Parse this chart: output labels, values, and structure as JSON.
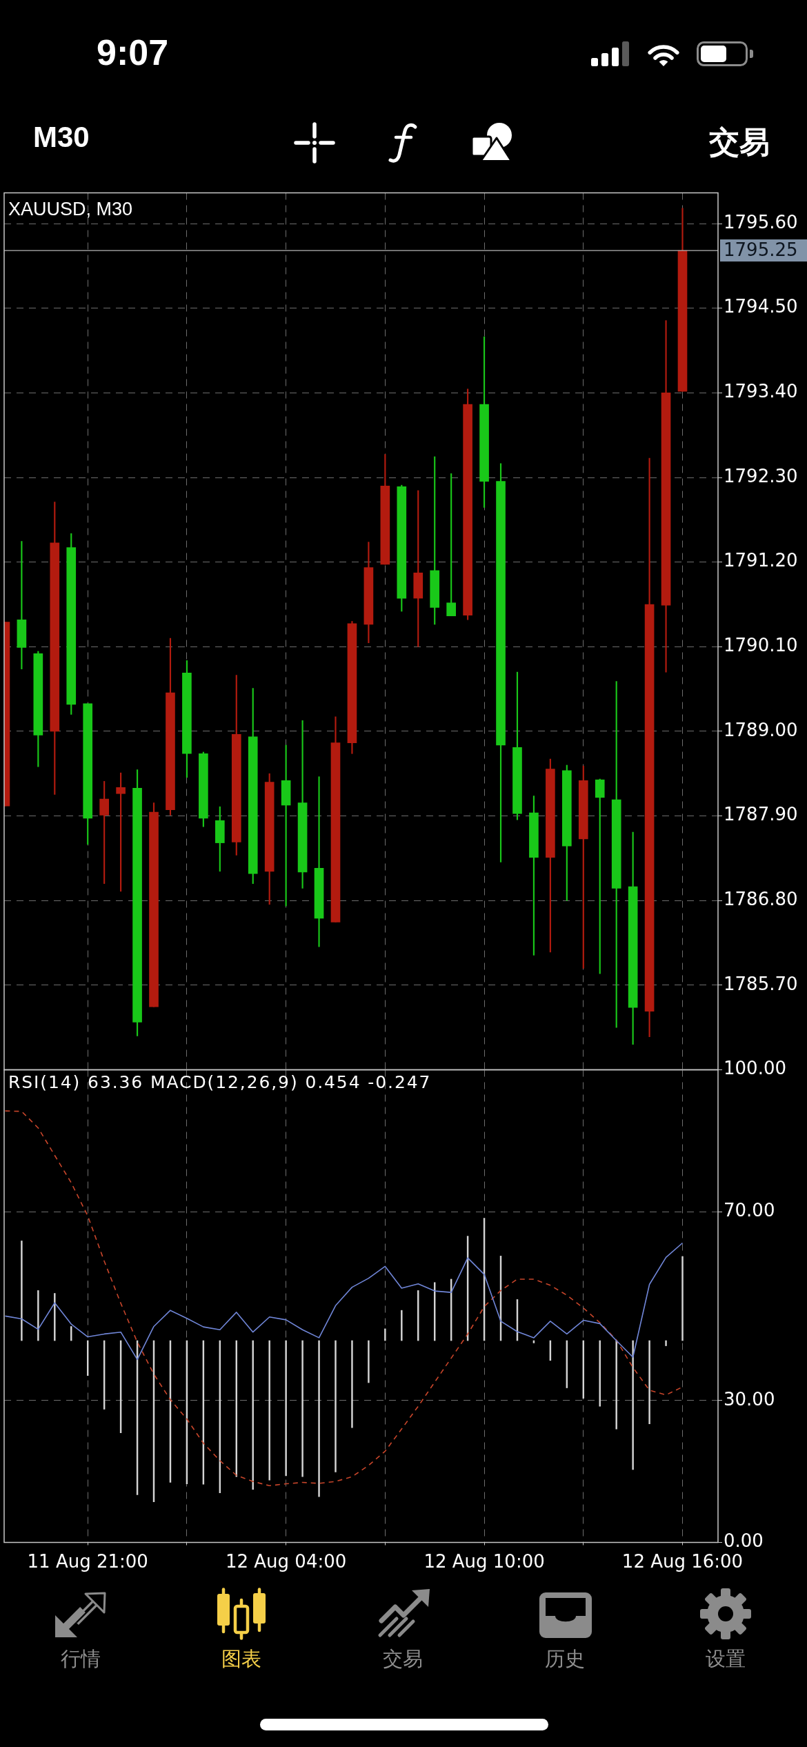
{
  "chart_data": [
    {
      "type": "candlestick",
      "title": "XAUUSD, M30",
      "categories": [
        null,
        null,
        null,
        null,
        null,
        null,
        null,
        null,
        null,
        null,
        null,
        null,
        null,
        null,
        null,
        null,
        null,
        null,
        null,
        null,
        null,
        null,
        null,
        null,
        null,
        null,
        null,
        null,
        null,
        null,
        null,
        null,
        null,
        null,
        null,
        null,
        null,
        null,
        null,
        null,
        null,
        null
      ],
      "ohlc": [
        [
          1788.03,
          1790.42,
          1788.03,
          1790.42
        ],
        [
          1790.45,
          1791.47,
          1789.81,
          1790.09
        ],
        [
          1790.01,
          1790.04,
          1788.54,
          1788.95
        ],
        [
          1789.0,
          1791.98,
          1788.18,
          1791.45
        ],
        [
          1791.39,
          1791.57,
          1789.22,
          1789.35
        ],
        [
          1789.36,
          1789.36,
          1787.53,
          1787.87
        ],
        [
          1787.91,
          1788.35,
          1787.02,
          1788.12
        ],
        [
          1788.19,
          1788.46,
          1786.92,
          1788.27
        ],
        [
          1788.26,
          1788.5,
          1785.04,
          1785.22
        ],
        [
          1785.42,
          1788.07,
          1785.42,
          1787.95
        ],
        [
          1787.98,
          1790.21,
          1787.91,
          1789.5
        ],
        [
          1789.76,
          1789.92,
          1788.4,
          1788.71
        ],
        [
          1788.71,
          1788.73,
          1787.76,
          1787.87
        ],
        [
          1787.84,
          1788.02,
          1787.18,
          1787.55
        ],
        [
          1787.56,
          1789.73,
          1787.39,
          1788.96
        ],
        [
          1788.93,
          1789.56,
          1787.02,
          1787.15
        ],
        [
          1787.18,
          1788.45,
          1786.75,
          1788.34
        ],
        [
          1788.36,
          1788.82,
          1786.73,
          1788.04
        ],
        [
          1788.07,
          1789.14,
          1786.96,
          1787.17
        ],
        [
          1787.22,
          1788.41,
          1786.2,
          1786.57
        ],
        [
          1786.52,
          1789.19,
          1786.52,
          1788.85
        ],
        [
          1788.85,
          1790.43,
          1788.71,
          1790.4
        ],
        [
          1790.39,
          1791.46,
          1790.15,
          1791.13
        ],
        [
          1791.17,
          1792.6,
          1791.17,
          1792.19
        ],
        [
          1792.18,
          1792.2,
          1790.56,
          1790.73
        ],
        [
          1790.73,
          1792.13,
          1790.1,
          1791.06
        ],
        [
          1791.09,
          1792.57,
          1790.39,
          1790.61
        ],
        [
          1790.67,
          1792.35,
          1790.5,
          1790.5
        ],
        [
          1790.51,
          1793.45,
          1790.45,
          1793.25
        ],
        [
          1793.25,
          1794.13,
          1791.91,
          1792.25
        ],
        [
          1792.25,
          1792.48,
          1787.3,
          1788.82
        ],
        [
          1788.79,
          1789.77,
          1787.85,
          1787.93
        ],
        [
          1787.94,
          1788.16,
          1786.09,
          1787.36
        ],
        [
          1787.36,
          1788.64,
          1786.13,
          1788.51
        ],
        [
          1788.49,
          1788.56,
          1786.8,
          1787.51
        ],
        [
          1787.6,
          1788.55,
          1785.92,
          1788.36
        ],
        [
          1788.37,
          1788.38,
          1785.85,
          1788.14
        ],
        [
          1788.11,
          1789.65,
          1785.15,
          1786.96
        ],
        [
          1786.98,
          1787.69,
          1784.93,
          1785.41
        ],
        [
          1785.36,
          1792.55,
          1785.03,
          1790.65
        ],
        [
          1790.64,
          1794.34,
          1789.77,
          1793.4
        ],
        [
          1793.42,
          1795.8,
          1793.42,
          1795.25
        ]
      ],
      "colors": [
        "#b31b0f",
        "#19c819",
        "#19c819",
        "#b31b0f",
        "#19c819",
        "#19c819",
        "#b31b0f",
        "#b31b0f",
        "#19c819",
        "#b31b0f",
        "#b31b0f",
        "#19c819",
        "#19c819",
        "#19c819",
        "#b31b0f",
        "#19c819",
        "#b31b0f",
        "#19c819",
        "#19c819",
        "#19c819",
        "#b31b0f",
        "#b31b0f",
        "#b31b0f",
        "#b31b0f",
        "#19c819",
        "#b31b0f",
        "#19c819",
        "#19c819",
        "#b31b0f",
        "#19c819",
        "#19c819",
        "#19c819",
        "#19c819",
        "#b31b0f",
        "#19c819",
        "#b31b0f",
        "#19c819",
        "#19c819",
        "#19c819",
        "#b31b0f",
        "#b31b0f",
        "#b31b0f"
      ],
      "ylim": [
        1784.6,
        1796.0
      ],
      "yticks": [
        {
          "value": 1785.7,
          "label": "1785.70"
        },
        {
          "value": 1786.8,
          "label": "1786.80"
        },
        {
          "value": 1787.9,
          "label": "1787.90"
        },
        {
          "value": 1789,
          "label": "1789.00"
        },
        {
          "value": 1790.1,
          "label": "1790.10"
        },
        {
          "value": 1791.2,
          "label": "1791.20"
        },
        {
          "value": 1792.3,
          "label": "1792.30"
        },
        {
          "value": 1793.4,
          "label": "1793.40"
        },
        {
          "value": 1794.5,
          "label": "1794.50"
        },
        {
          "value": 1795.6,
          "label": "1795.60"
        }
      ],
      "grid": true,
      "tick_labels": "y",
      "ref_lines": [
        {
          "axis": "y",
          "value": 1795.25,
          "label": "1795.25",
          "color": "#b4b4b4"
        }
      ],
      "annotations": [
        "9:07",
        "M30",
        "交易"
      ]
    },
    {
      "type": "line",
      "title": "RSI(14) 63.36 MACD(12,26,9) 0.454 -0.247",
      "categories": [
        null,
        null,
        null,
        null,
        null,
        "11 Aug 21:00",
        null,
        null,
        null,
        null,
        null,
        null,
        null,
        null,
        null,
        null,
        null,
        "12 Aug 04:00",
        null,
        null,
        null,
        null,
        null,
        null,
        null,
        null,
        null,
        null,
        null,
        "12 Aug 10:00",
        null,
        null,
        null,
        null,
        null,
        null,
        null,
        null,
        null,
        null,
        null,
        "12 Aug 16:00"
      ],
      "series": [
        {
          "type": "bar",
          "color": "#d4d4d4",
          "base": [
            null,
            42.7,
            42.7,
            42.7,
            42.7,
            42.7,
            42.7,
            42.7,
            42.7,
            42.7,
            42.7,
            42.7,
            42.7,
            42.7,
            42.7,
            42.7,
            42.7,
            42.7,
            42.7,
            42.7,
            42.7,
            42.7,
            42.7,
            42.7,
            42.7,
            42.7,
            42.7,
            42.7,
            42.7,
            42.7,
            42.7,
            42.7,
            42.7,
            42.7,
            42.7,
            42.7,
            42.7,
            42.7,
            42.7,
            42.7,
            42.7,
            42.7
          ],
          "values": [
            null,
            21.1,
            10.6,
            10.0,
            3.0,
            -7.4,
            -14.5,
            -19.5,
            -32.6,
            -34.1,
            -30.0,
            -30.3,
            -30.4,
            -32.2,
            -28.8,
            -31.5,
            -29.5,
            -28.6,
            -28.8,
            -33.0,
            -27.8,
            -18.4,
            -8.9,
            2.5,
            6.4,
            10.6,
            12.3,
            13.0,
            22.1,
            25.9,
            17.9,
            8.7,
            -0.5,
            -4.2,
            -10.0,
            -12.2,
            -13.9,
            -18.7,
            -27.3,
            -17.6,
            -1.1,
            17.8
          ]
        },
        {
          "type": "line",
          "color": "#7086d8",
          "values": [
            47.9,
            47.3,
            45.1,
            50.7,
            46.2,
            43.5,
            44.1,
            44.5,
            38.7,
            45.7,
            49.1,
            47.4,
            45.6,
            45.0,
            48.7,
            44.5,
            47.7,
            47.1,
            45.0,
            43.3,
            50.1,
            54.0,
            55.9,
            58.4,
            53.8,
            54.7,
            53.2,
            52.9,
            60.2,
            56.7,
            46.8,
            44.6,
            43.3,
            46.8,
            44.1,
            47.0,
            46.3,
            42.7,
            39.2,
            54.6,
            60.3,
            63.36
          ]
        },
        {
          "type": "line",
          "color": "#c8452a",
          "line_style": "dashed",
          "values": [
            91.3,
            91.2,
            87.7,
            81.9,
            76.1,
            69.1,
            59.5,
            50.6,
            42.4,
            35.6,
            30.2,
            26.1,
            21.0,
            17.3,
            14.2,
            12.9,
            12.0,
            12.4,
            12.7,
            12.5,
            12.9,
            13.9,
            16.3,
            19.3,
            24.0,
            28.8,
            33.9,
            39.0,
            44.1,
            49.9,
            53.3,
            55.7,
            55.7,
            54.4,
            52.3,
            49.6,
            46.5,
            42.8,
            37.0,
            32.2,
            31.2,
            32.9
          ]
        }
      ],
      "ylim": [
        0,
        100
      ],
      "yticks": [
        {
          "value": 0,
          "label": "0.00"
        },
        {
          "value": 30,
          "label": "30.00"
        },
        {
          "value": 70,
          "label": "70.00"
        },
        {
          "value": 100,
          "label": "100.00"
        }
      ],
      "grid": true,
      "annotations": [
        "行情",
        "图表",
        "交易",
        "历史",
        "设置"
      ]
    }
  ]
}
